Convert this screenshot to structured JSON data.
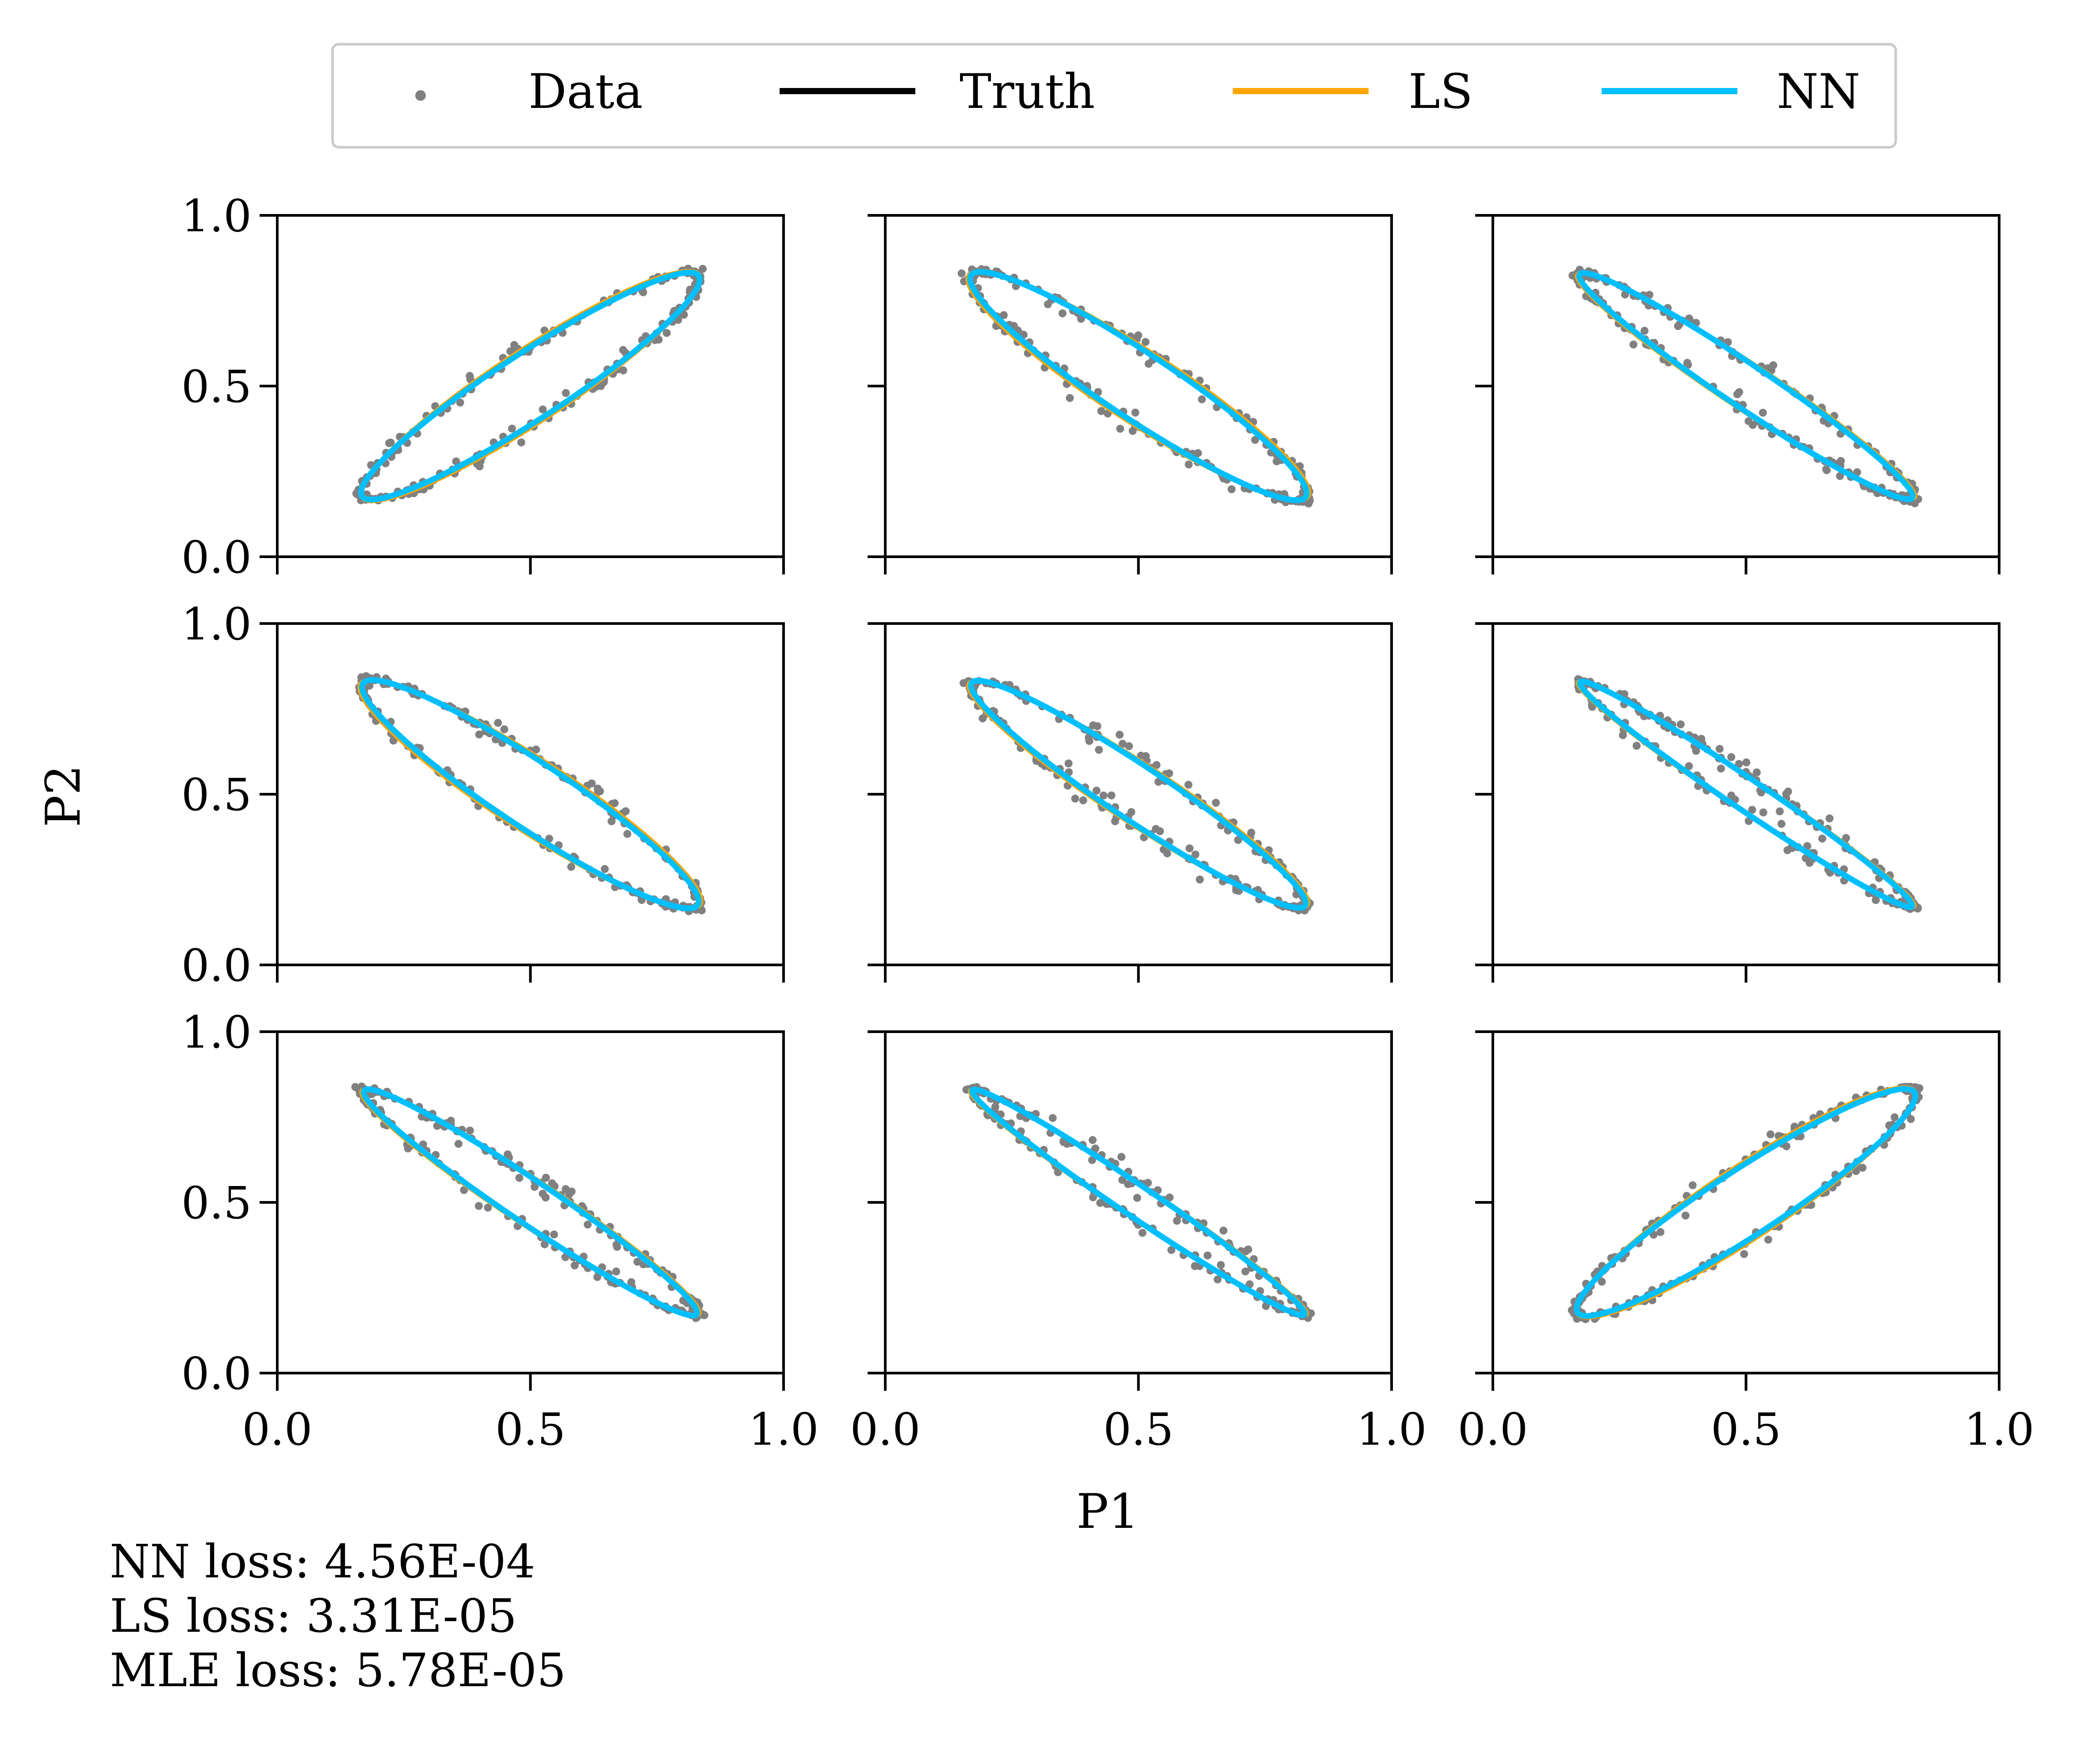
{
  "colors": {
    "data": "#808080",
    "truth": "#000000",
    "ls": "#FFA500",
    "nn": "#00BFFF",
    "legend_border": "#cccccc"
  },
  "loss_text": {
    "nn": "NN loss: 4.56E-04",
    "ls": "LS loss: 3.31E-05",
    "mle": "MLE loss: 5.78E-05"
  },
  "chart_data": {
    "type": "scatter",
    "grid": false,
    "legend_position": "top-center",
    "xlabel": "P1",
    "ylabel": "P2",
    "xlim": [
      0.0,
      1.0
    ],
    "ylim": [
      0.0,
      1.0
    ],
    "xticks": [
      "0.0",
      "0.5",
      "1.0"
    ],
    "yticks": [
      "0.0",
      "0.5",
      "1.0"
    ],
    "legend": [
      {
        "name": "Data",
        "kind": "marker"
      },
      {
        "name": "Truth",
        "kind": "line"
      },
      {
        "name": "LS",
        "kind": "line"
      },
      {
        "name": "NN",
        "kind": "line"
      }
    ],
    "rows": 3,
    "cols": 3,
    "panels": [
      {
        "orientation": "positive",
        "width": 0.085
      },
      {
        "orientation": "negative",
        "width": 0.085
      },
      {
        "orientation": "negative",
        "width": 0.055
      },
      {
        "orientation": "negative",
        "width": 0.085
      },
      {
        "orientation": "negative",
        "width": 0.07
      },
      {
        "orientation": "negative",
        "width": 0.04
      },
      {
        "orientation": "negative",
        "width": 0.055
      },
      {
        "orientation": "negative",
        "width": 0.04
      },
      {
        "orientation": "positive",
        "width": 0.085
      }
    ],
    "ellipse_endpoints": [
      [
        0.17,
        0.17
      ],
      [
        0.83,
        0.83
      ]
    ]
  }
}
